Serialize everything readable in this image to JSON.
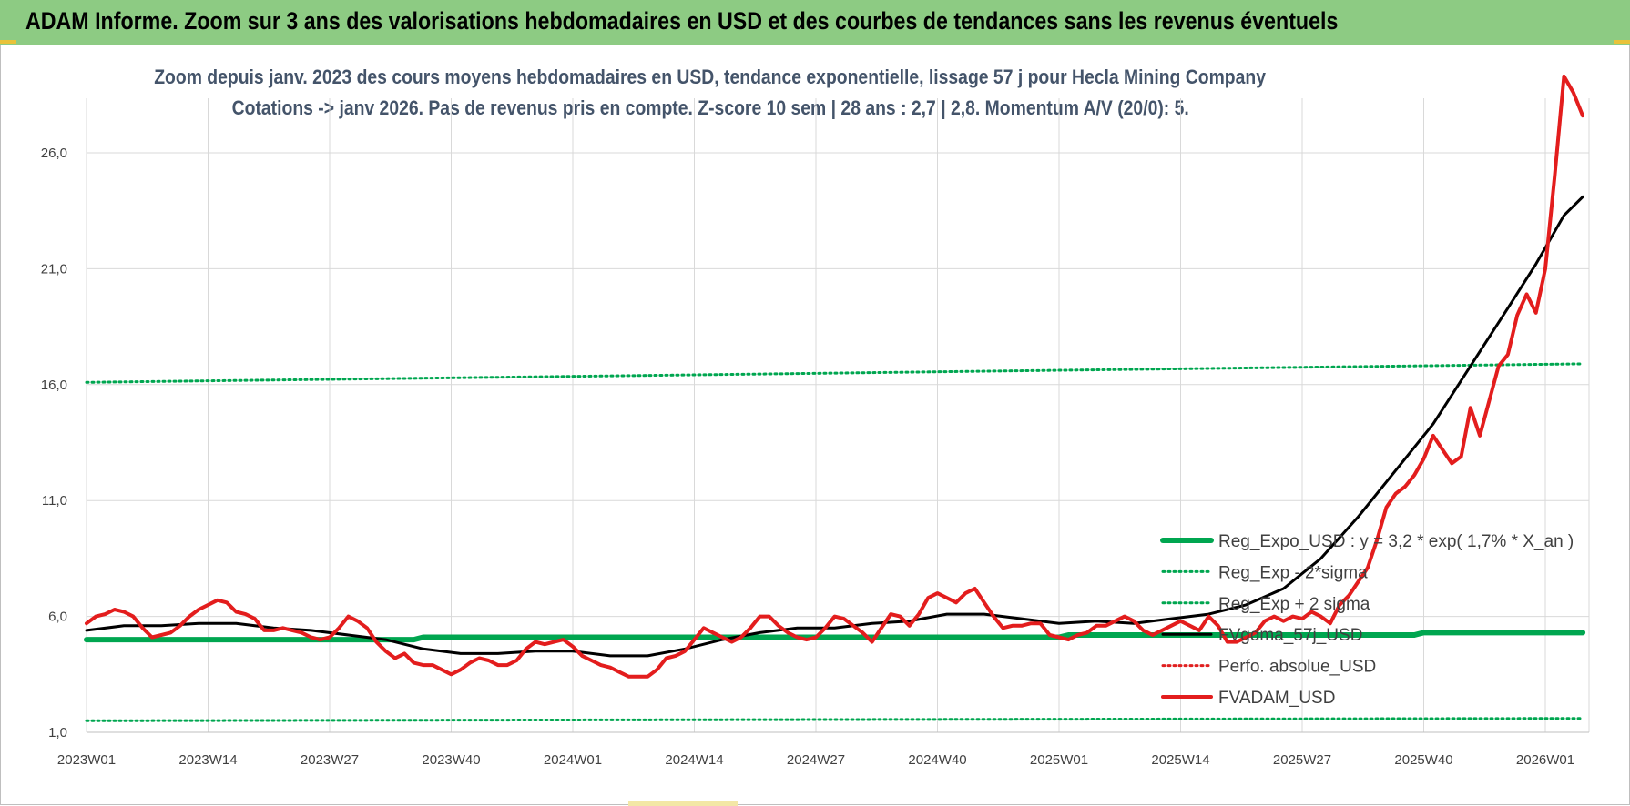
{
  "header": {
    "title": "ADAM Informe. Zoom sur 3 ans des valorisations hebdomadaires en USD et des courbes de tendances sans les revenus éventuels"
  },
  "chart_data": {
    "type": "line",
    "title": "Zoom depuis janv. 2023 des cours moyens hebdomadaires en USD, tendance exponentielle, lissage 57 j pour Hecla Mining Company",
    "subtitle": "Cotations -> janv 2026. Pas de revenus pris en compte. Z-score 10 sem | 28 ans : 2,7 | 2,8. Momentum A/V (20/0): 5.",
    "xlabel": "",
    "ylabel": "",
    "ylim": [
      1.0,
      29.5
    ],
    "x_tick_labels": [
      "2023W01",
      "2023W14",
      "2023W27",
      "2023W40",
      "2024W01",
      "2024W14",
      "2024W27",
      "2024W40",
      "2025W01",
      "2025W14",
      "2025W27",
      "2025W40",
      "2026W01"
    ],
    "x_tick_weeks": [
      0,
      13,
      26,
      39,
      52,
      65,
      78,
      91,
      104,
      117,
      130,
      143,
      156
    ],
    "y_ticks": [
      1.0,
      6.0,
      11.0,
      16.0,
      21.0,
      26.0
    ],
    "y_tick_labels": [
      "1,0",
      "6,0",
      "11,0",
      "16,0",
      "21,0",
      "26,0"
    ],
    "grid": true,
    "legend_position": "right",
    "series": [
      {
        "name": "Reg_Expo_USD : y = 3,2 * exp( 1,7% * X_an )",
        "style": "solid-thick",
        "color": "#00a650",
        "x": [
          0,
          35,
          36,
          104,
          105,
          142,
          143,
          160
        ],
        "y": [
          5.0,
          5.0,
          5.1,
          5.1,
          5.2,
          5.2,
          5.3,
          5.3
        ]
      },
      {
        "name": "Reg_Exp - 2*sigma",
        "style": "dotted",
        "color": "#00a650",
        "x": [
          0,
          160
        ],
        "y": [
          1.5,
          1.6
        ]
      },
      {
        "name": "Reg_Exp + 2 sigma",
        "style": "dotted",
        "color": "#00a650",
        "x": [
          0,
          160
        ],
        "y": [
          16.1,
          16.9
        ]
      },
      {
        "name": "FVgdma_57j_USD",
        "style": "solid",
        "color": "#000000",
        "x": [
          0,
          4,
          8,
          12,
          16,
          20,
          24,
          28,
          32,
          36,
          40,
          44,
          48,
          52,
          56,
          60,
          64,
          68,
          72,
          76,
          80,
          84,
          88,
          92,
          96,
          100,
          104,
          108,
          112,
          116,
          120,
          124,
          128,
          132,
          136,
          140,
          144,
          148,
          152,
          155,
          158,
          160
        ],
        "y": [
          5.4,
          5.6,
          5.6,
          5.7,
          5.7,
          5.5,
          5.4,
          5.2,
          5.0,
          4.6,
          4.4,
          4.4,
          4.5,
          4.5,
          4.3,
          4.3,
          4.6,
          5.0,
          5.3,
          5.5,
          5.5,
          5.7,
          5.8,
          6.1,
          6.1,
          5.9,
          5.7,
          5.8,
          5.7,
          5.9,
          6.1,
          6.5,
          7.2,
          8.5,
          10.3,
          12.3,
          14.3,
          16.8,
          19.3,
          21.2,
          23.3,
          24.1
        ]
      },
      {
        "name": "Perfo. absolue_USD",
        "style": "dotted",
        "color": "#e02020",
        "x": [],
        "y": []
      },
      {
        "name": "FVADAM_USD",
        "style": "solid-thick",
        "color": "#e31d1d",
        "x": [
          0,
          1,
          2,
          3,
          4,
          5,
          6,
          7,
          8,
          9,
          10,
          11,
          12,
          13,
          14,
          15,
          16,
          17,
          18,
          19,
          20,
          21,
          22,
          23,
          24,
          25,
          26,
          27,
          28,
          29,
          30,
          31,
          32,
          33,
          34,
          35,
          36,
          37,
          38,
          39,
          40,
          41,
          42,
          43,
          44,
          45,
          46,
          47,
          48,
          49,
          50,
          51,
          52,
          53,
          54,
          55,
          56,
          57,
          58,
          59,
          60,
          61,
          62,
          63,
          64,
          65,
          66,
          67,
          68,
          69,
          70,
          71,
          72,
          73,
          74,
          75,
          76,
          77,
          78,
          79,
          80,
          81,
          82,
          83,
          84,
          85,
          86,
          87,
          88,
          89,
          90,
          91,
          92,
          93,
          94,
          95,
          96,
          97,
          98,
          99,
          100,
          101,
          102,
          103,
          104,
          105,
          106,
          107,
          108,
          109,
          110,
          111,
          112,
          113,
          114,
          115,
          116,
          117,
          118,
          119,
          120,
          121,
          122,
          123,
          124,
          125,
          126,
          127,
          128,
          129,
          130,
          131,
          132,
          133,
          134,
          135,
          136,
          137,
          138,
          139,
          140,
          141,
          142,
          143,
          144,
          145,
          146,
          147,
          148,
          149,
          150,
          151,
          152,
          153,
          154,
          155,
          156,
          157,
          158,
          159,
          160
        ],
        "y": [
          5.7,
          6.0,
          6.1,
          6.3,
          6.2,
          6.0,
          5.5,
          5.1,
          5.2,
          5.3,
          5.6,
          6.0,
          6.3,
          6.5,
          6.7,
          6.6,
          6.2,
          6.1,
          5.9,
          5.4,
          5.4,
          5.5,
          5.4,
          5.3,
          5.1,
          5.0,
          5.1,
          5.5,
          6.0,
          5.8,
          5.5,
          4.9,
          4.5,
          4.2,
          4.4,
          4.0,
          3.9,
          3.9,
          3.7,
          3.5,
          3.7,
          4.0,
          4.2,
          4.1,
          3.9,
          3.9,
          4.1,
          4.6,
          4.9,
          4.8,
          4.9,
          5.0,
          4.7,
          4.3,
          4.1,
          3.9,
          3.8,
          3.6,
          3.4,
          3.4,
          3.4,
          3.7,
          4.2,
          4.3,
          4.5,
          5.0,
          5.5,
          5.3,
          5.1,
          4.9,
          5.1,
          5.5,
          6.0,
          6.0,
          5.6,
          5.3,
          5.1,
          5.0,
          5.1,
          5.5,
          6.0,
          5.9,
          5.6,
          5.3,
          4.9,
          5.5,
          6.1,
          6.0,
          5.6,
          6.1,
          6.8,
          7.0,
          6.8,
          6.6,
          7.0,
          7.2,
          6.6,
          6.0,
          5.5,
          5.6,
          5.6,
          5.7,
          5.7,
          5.2,
          5.1,
          5.0,
          5.2,
          5.3,
          5.6,
          5.6,
          5.8,
          6.0,
          5.8,
          5.4,
          5.2,
          5.4,
          5.6,
          5.8,
          5.6,
          5.4,
          6.0,
          5.6,
          4.9,
          4.9,
          5.1,
          5.3,
          5.8,
          6.0,
          5.8,
          6.0,
          5.9,
          6.2,
          6.0,
          5.7,
          6.5,
          6.9,
          7.5,
          8.1,
          9.3,
          10.7,
          11.3,
          11.6,
          12.1,
          12.8,
          13.8,
          13.2,
          12.6,
          12.9,
          15.0,
          13.8,
          15.3,
          16.8,
          17.3,
          19.0,
          19.9,
          19.1,
          21.0,
          25.0,
          29.3,
          28.6,
          27.6
        ]
      }
    ]
  }
}
